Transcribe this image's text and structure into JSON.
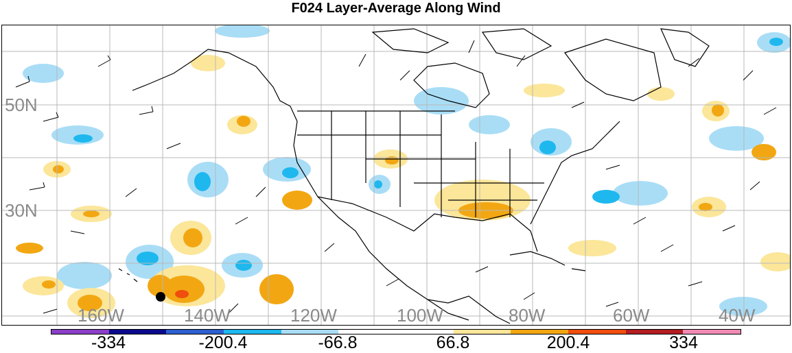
{
  "title": "F024 Layer-Average Along Wind",
  "lat_labels": [
    "50N",
    "30N"
  ],
  "lon_labels": [
    "160W",
    "140W",
    "120W",
    "100W",
    "80W",
    "60W",
    "40W"
  ],
  "colorbar": {
    "colors": [
      "#8b3fc8",
      "#0a0a8c",
      "#2d5fcf",
      "#1eb8ee",
      "#a9ddf6",
      "#ffffff",
      "#ffffff",
      "#fbe69a",
      "#f2a712",
      "#ef4e0f",
      "#b21e22",
      "#f08bb4"
    ],
    "labels": [
      "-334",
      "-200.4",
      "-66.8",
      "66.8",
      "200.4",
      "334"
    ]
  },
  "marker": {
    "name": "black-dot"
  }
}
